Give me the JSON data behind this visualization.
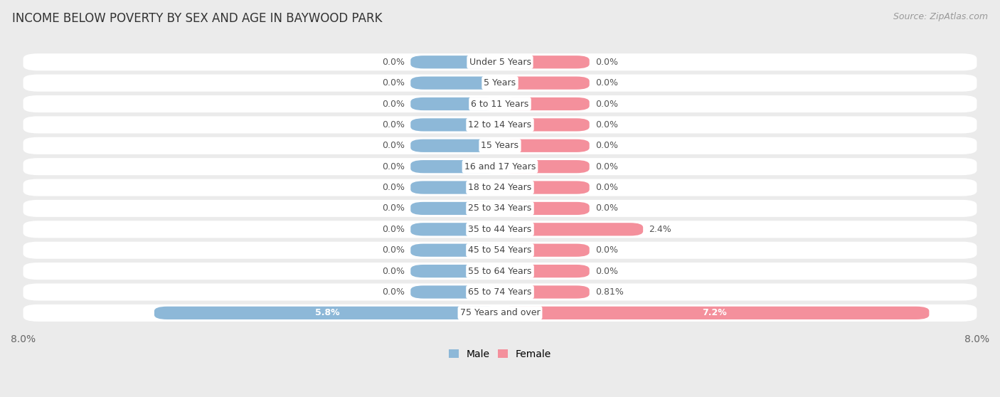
{
  "title": "INCOME BELOW POVERTY BY SEX AND AGE IN BAYWOOD PARK",
  "source": "Source: ZipAtlas.com",
  "categories": [
    "Under 5 Years",
    "5 Years",
    "6 to 11 Years",
    "12 to 14 Years",
    "15 Years",
    "16 and 17 Years",
    "18 to 24 Years",
    "25 to 34 Years",
    "35 to 44 Years",
    "45 to 54 Years",
    "55 to 64 Years",
    "65 to 74 Years",
    "75 Years and over"
  ],
  "male_values": [
    0.0,
    0.0,
    0.0,
    0.0,
    0.0,
    0.0,
    0.0,
    0.0,
    0.0,
    0.0,
    0.0,
    0.0,
    5.8
  ],
  "female_values": [
    0.0,
    0.0,
    0.0,
    0.0,
    0.0,
    0.0,
    0.0,
    0.0,
    2.4,
    0.0,
    0.0,
    0.81,
    7.2
  ],
  "male_color": "#8db8d8",
  "female_color": "#f4909c",
  "male_label": "Male",
  "female_label": "Female",
  "xlim": 8.0,
  "min_bar_width": 1.5,
  "background_color": "#ebebeb",
  "bar_bg_color": "#ffffff",
  "title_fontsize": 12,
  "source_fontsize": 9,
  "axis_fontsize": 10,
  "label_fontsize": 9,
  "value_fontsize": 9
}
